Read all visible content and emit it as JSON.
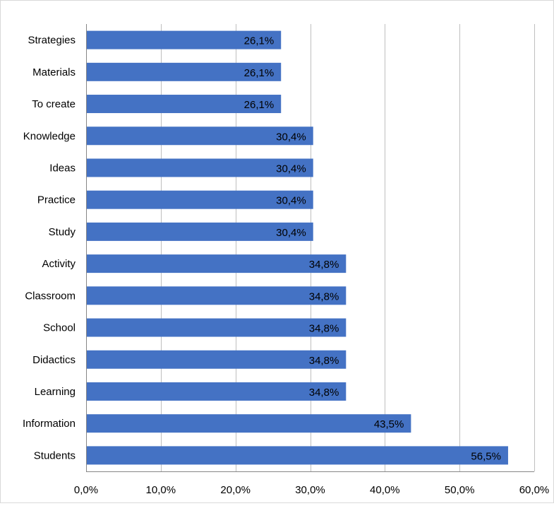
{
  "chart_data": {
    "type": "bar",
    "orientation": "horizontal",
    "categories": [
      "Strategies",
      "Materials",
      "To create",
      "Knowledge",
      "Ideas",
      "Practice",
      "Study",
      "Activity",
      "Classroom",
      "School",
      "Didactics",
      "Learning",
      "Information",
      "Students"
    ],
    "values": [
      26.1,
      26.1,
      26.1,
      30.4,
      30.4,
      30.4,
      30.4,
      34.8,
      34.8,
      34.8,
      34.8,
      34.8,
      43.5,
      56.5
    ],
    "data_labels": [
      "26,1%",
      "26,1%",
      "26,1%",
      "30,4%",
      "30,4%",
      "30,4%",
      "30,4%",
      "34,8%",
      "34,8%",
      "34,8%",
      "34,8%",
      "34,8%",
      "43,5%",
      "56,5%"
    ],
    "xlim": [
      0,
      60
    ],
    "x_ticks": [
      0,
      10,
      20,
      30,
      40,
      50,
      60
    ],
    "x_tick_labels": [
      "0,0%",
      "10,0%",
      "20,0%",
      "30,0%",
      "40,0%",
      "50,0%",
      "60,0%"
    ],
    "grid": "vertical",
    "legend": "none",
    "colors": {
      "bar": "#4472c4",
      "grid": "#bfbfbf",
      "axis": "#868686",
      "border": "#d9d9d9"
    }
  }
}
